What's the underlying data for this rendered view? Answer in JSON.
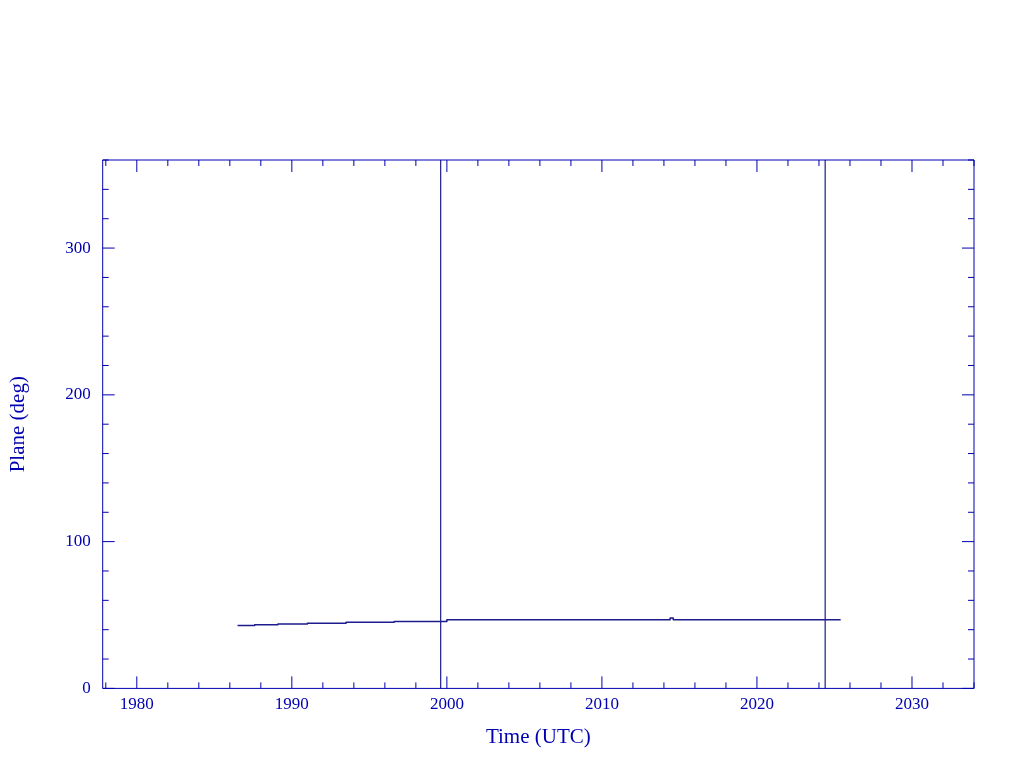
{
  "chart_data": {
    "type": "step",
    "xlabel": "Time (UTC)",
    "ylabel": "Plane (deg)",
    "xlim": [
      1977.8,
      2034
    ],
    "ylim": [
      0,
      360
    ],
    "xticks": [
      {
        "value": 1978,
        "label": null
      },
      1980,
      {
        "value": 1982,
        "label": null
      },
      {
        "value": 1984,
        "label": null
      },
      {
        "value": 1986,
        "label": null
      },
      {
        "value": 1988,
        "label": null
      },
      1990,
      {
        "value": 1992,
        "label": null
      },
      {
        "value": 1994,
        "label": null
      },
      {
        "value": 1996,
        "label": null
      },
      {
        "value": 1998,
        "label": null
      },
      2000,
      {
        "value": 2002,
        "label": null
      },
      {
        "value": 2004,
        "label": null
      },
      {
        "value": 2006,
        "label": null
      },
      {
        "value": 2008,
        "label": null
      },
      2010,
      {
        "value": 2012,
        "label": null
      },
      {
        "value": 2014,
        "label": null
      },
      {
        "value": 2016,
        "label": null
      },
      {
        "value": 2018,
        "label": null
      },
      2020,
      {
        "value": 2022,
        "label": null
      },
      {
        "value": 2024,
        "label": null
      },
      {
        "value": 2026,
        "label": null
      },
      {
        "value": 2028,
        "label": null
      },
      2030,
      {
        "value": 2032,
        "label": null
      },
      {
        "value": 2034,
        "label": null
      }
    ],
    "yticks": [
      0,
      {
        "value": 20,
        "label": null
      },
      {
        "value": 40,
        "label": null
      },
      {
        "value": 60,
        "label": null
      },
      {
        "value": 80,
        "label": null
      },
      100,
      {
        "value": 120,
        "label": null
      },
      {
        "value": 140,
        "label": null
      },
      {
        "value": 160,
        "label": null
      },
      {
        "value": 180,
        "label": null
      },
      200,
      {
        "value": 220,
        "label": null
      },
      {
        "value": 240,
        "label": null
      },
      {
        "value": 260,
        "label": null
      },
      {
        "value": 280,
        "label": null
      },
      300,
      {
        "value": 320,
        "label": null
      },
      {
        "value": 340,
        "label": null
      },
      {
        "value": 360,
        "label": null
      }
    ],
    "series": [
      {
        "color": "#1c1c8c",
        "x": [
          1986.5,
          1987.6,
          1989.1,
          1991.0,
          1993.5,
          1996.6,
          2000.0,
          2014.4,
          2014.6,
          2025.4
        ],
        "values": [
          42.9,
          43.3,
          43.9,
          44.4,
          45.0,
          45.6,
          46.7,
          48,
          46.7,
          46.7
        ]
      }
    ],
    "ref_lines": [
      {
        "axis": "x",
        "value": 1999.6,
        "color": "#1c1c8c"
      },
      {
        "axis": "x",
        "value": 2024.4,
        "color": "#1c1c8c"
      }
    ],
    "grid": false,
    "legend": false,
    "marker": "none",
    "line_style": "solid"
  }
}
